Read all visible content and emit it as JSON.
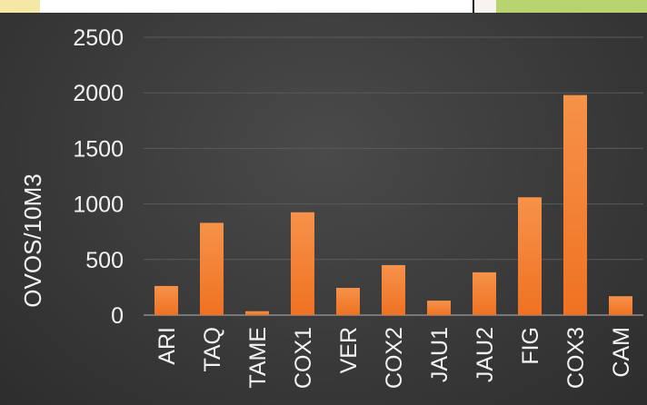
{
  "chart_data": {
    "type": "bar",
    "ylabel": "OVOS/10M3",
    "xlabel": "",
    "title": "",
    "categories": [
      "ARI",
      "TAQ",
      "TAME",
      "COX1",
      "VER",
      "COX2",
      "JAU1",
      "JAU2",
      "FIG",
      "COX3",
      "CAM"
    ],
    "values": [
      262,
      830,
      35,
      925,
      245,
      450,
      130,
      385,
      1060,
      1980,
      170
    ],
    "ylim": [
      0,
      2500
    ],
    "yticks": [
      0,
      500,
      1000,
      1500,
      2000,
      2500
    ],
    "grid": true,
    "legend": "none",
    "bar_color": "#f07a2a",
    "bar_highlight_color": "#f6924a",
    "background_color": "#3b3b3b"
  }
}
